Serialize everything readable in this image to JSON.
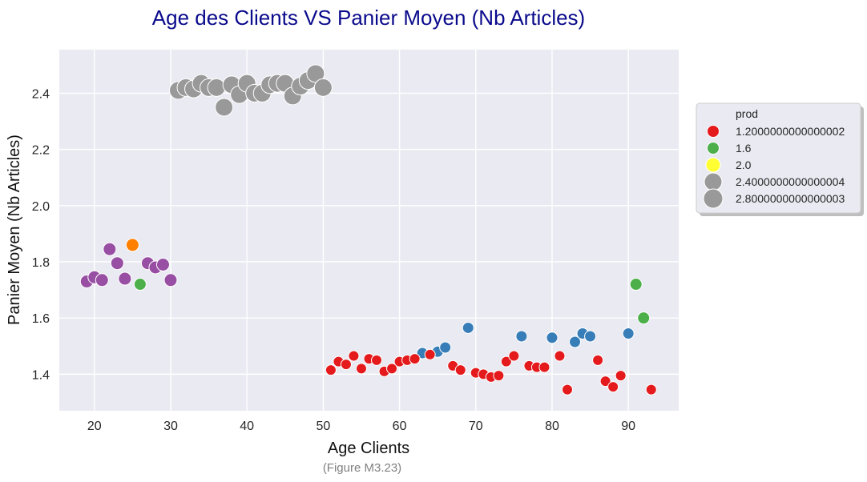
{
  "chart_data": {
    "type": "scatter",
    "title": "Age des Clients   VS   Panier Moyen (Nb Articles)",
    "xlabel": "Age Clients",
    "ylabel": "Panier Moyen (Nb Articles)",
    "caption": "(Figure M3.23)",
    "xlim": [
      15.4,
      96.6
    ],
    "ylim": [
      1.27,
      2.555
    ],
    "xticks": [
      20,
      30,
      40,
      50,
      60,
      70,
      80,
      90
    ],
    "yticks": [
      1.4,
      1.6,
      1.8,
      2.0,
      2.2,
      2.4
    ],
    "xtick_labels": [
      "20",
      "30",
      "40",
      "50",
      "60",
      "70",
      "80",
      "90"
    ],
    "ytick_labels": [
      "1.4",
      "1.6",
      "1.8",
      "2.0",
      "2.2",
      "2.4"
    ],
    "grid": true,
    "background": "#eaeaf2",
    "legend": {
      "title": "prod",
      "placement": "right",
      "entries": [
        {
          "label": "1.2000000000000002",
          "color": "#e41a1c",
          "size": "small"
        },
        {
          "label": "1.6",
          "color": "#4daf4a",
          "size": "small"
        },
        {
          "label": "2.0",
          "color": "#ffff33",
          "size": "medium"
        },
        {
          "label": "2.4000000000000004",
          "color": "#999999",
          "size": "large"
        },
        {
          "label": "2.8000000000000003",
          "color": "#999999",
          "size": "xlarge"
        }
      ]
    },
    "colors": {
      "red": "#e41a1c",
      "blue": "#377eb8",
      "green": "#4daf4a",
      "purple": "#984ea3",
      "orange": "#ff7f00",
      "gray": "#999999"
    },
    "series": [
      {
        "group": "gray",
        "points": [
          [
            31,
            2.41
          ],
          [
            32,
            2.42
          ],
          [
            33,
            2.415
          ],
          [
            34,
            2.435
          ],
          [
            35,
            2.42
          ],
          [
            36,
            2.42
          ],
          [
            37,
            2.35
          ],
          [
            38,
            2.43
          ],
          [
            39,
            2.395
          ],
          [
            40,
            2.435
          ],
          [
            41,
            2.4
          ],
          [
            42,
            2.4
          ],
          [
            43,
            2.43
          ],
          [
            44,
            2.435
          ],
          [
            45,
            2.435
          ],
          [
            46,
            2.39
          ],
          [
            47,
            2.425
          ],
          [
            48,
            2.445
          ],
          [
            49,
            2.47
          ],
          [
            50,
            2.42
          ]
        ]
      },
      {
        "group": "purple",
        "points": [
          [
            19,
            1.73
          ],
          [
            20,
            1.745
          ],
          [
            21,
            1.735
          ],
          [
            22,
            1.845
          ],
          [
            23,
            1.795
          ],
          [
            24,
            1.74
          ],
          [
            27,
            1.795
          ],
          [
            28,
            1.78
          ],
          [
            29,
            1.79
          ],
          [
            30,
            1.735
          ]
        ]
      },
      {
        "group": "orange",
        "points": [
          [
            25,
            1.86
          ]
        ]
      },
      {
        "group": "green",
        "points": [
          [
            26,
            1.72
          ],
          [
            91,
            1.72
          ],
          [
            92,
            1.6
          ]
        ]
      },
      {
        "group": "blue",
        "points": [
          [
            63,
            1.475
          ],
          [
            65,
            1.48
          ],
          [
            66,
            1.495
          ],
          [
            69,
            1.565
          ],
          [
            76,
            1.535
          ],
          [
            80,
            1.53
          ],
          [
            83,
            1.515
          ],
          [
            84,
            1.545
          ],
          [
            85,
            1.535
          ],
          [
            90,
            1.545
          ]
        ]
      },
      {
        "group": "red",
        "points": [
          [
            51,
            1.415
          ],
          [
            52,
            1.445
          ],
          [
            53,
            1.435
          ],
          [
            54,
            1.465
          ],
          [
            55,
            1.42
          ],
          [
            56,
            1.455
          ],
          [
            57,
            1.45
          ],
          [
            58,
            1.41
          ],
          [
            59,
            1.42
          ],
          [
            60,
            1.445
          ],
          [
            61,
            1.45
          ],
          [
            62,
            1.455
          ],
          [
            64,
            1.47
          ],
          [
            67,
            1.43
          ],
          [
            68,
            1.415
          ],
          [
            70,
            1.405
          ],
          [
            71,
            1.4
          ],
          [
            72,
            1.39
          ],
          [
            73,
            1.395
          ],
          [
            74,
            1.445
          ],
          [
            75,
            1.465
          ],
          [
            77,
            1.43
          ],
          [
            78,
            1.425
          ],
          [
            79,
            1.425
          ],
          [
            81,
            1.465
          ],
          [
            82,
            1.345
          ],
          [
            86,
            1.45
          ],
          [
            87,
            1.375
          ],
          [
            88,
            1.355
          ],
          [
            89,
            1.395
          ],
          [
            93,
            1.345
          ]
        ]
      }
    ]
  }
}
